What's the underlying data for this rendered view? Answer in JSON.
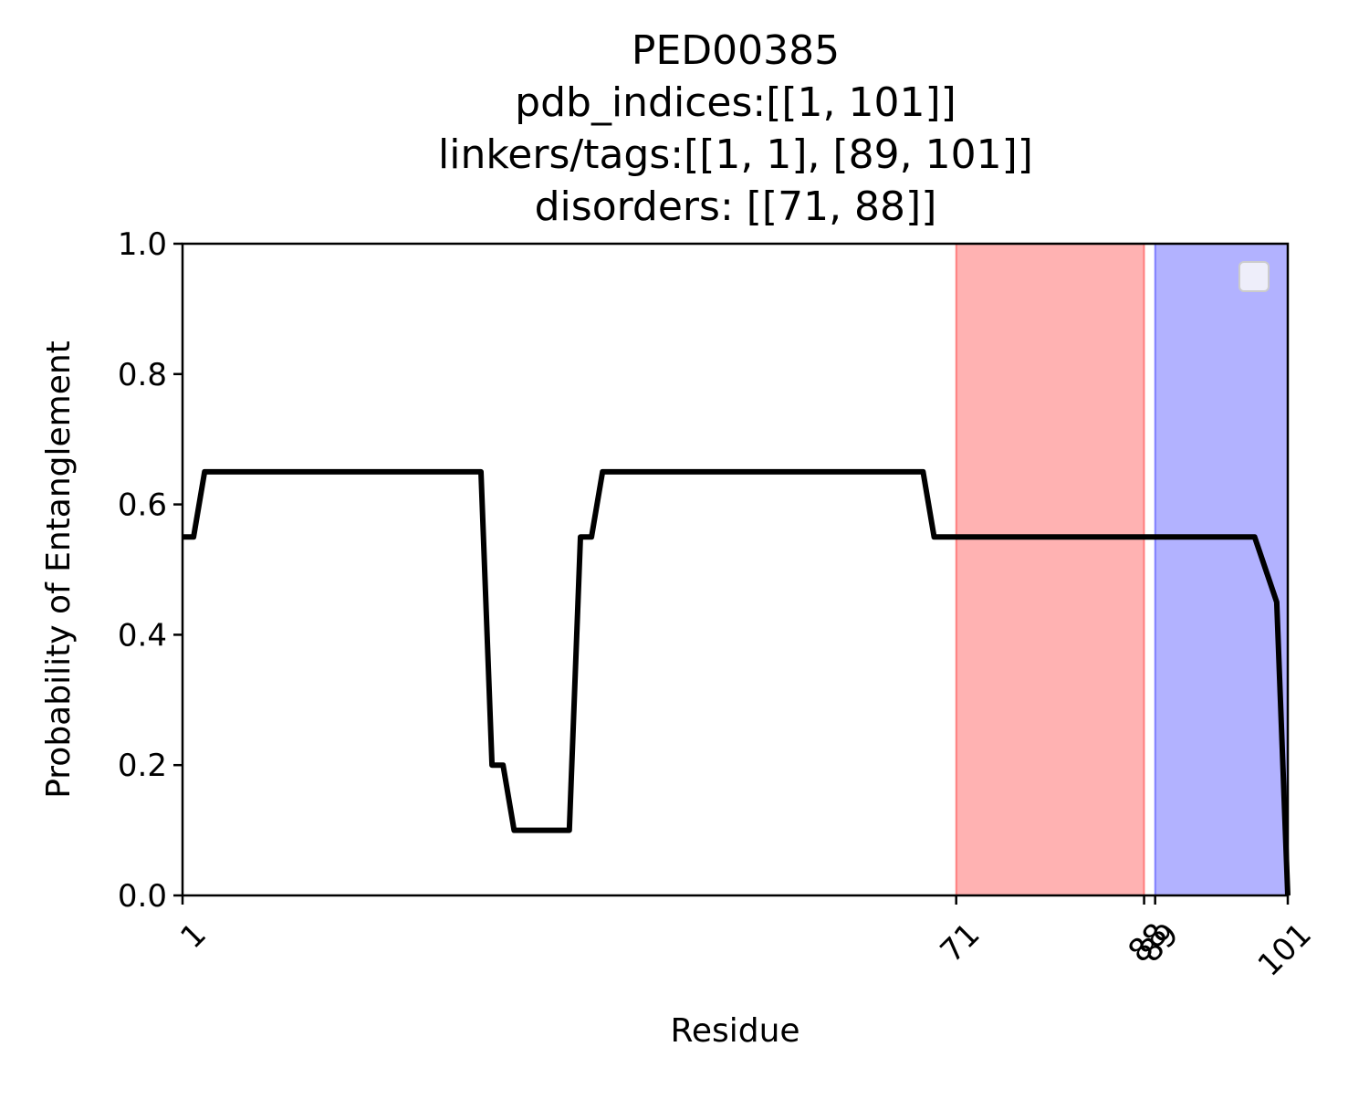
{
  "chart_data": {
    "type": "line",
    "title_lines": [
      "PED00385",
      "pdb_indices:[[1, 101]]",
      "linkers/tags:[[1, 1], [89, 101]]",
      "disorders: [[71, 88]]"
    ],
    "xlabel": "Residue",
    "ylabel": "Probability of Entanglement",
    "xlim": [
      1,
      101
    ],
    "ylim": [
      0,
      1
    ],
    "x_ticks": [
      1,
      71,
      88,
      89,
      101
    ],
    "y_ticks": [
      0.0,
      0.2,
      0.4,
      0.6,
      0.8,
      1.0
    ],
    "y_tick_labels": [
      "0.0",
      "0.2",
      "0.4",
      "0.6",
      "0.8",
      "1.0"
    ],
    "grid": false,
    "legend": {
      "location": "top-right",
      "entries": []
    },
    "shaded_regions": [
      {
        "kind": "disorder",
        "x_start": 71,
        "x_end": 88,
        "color": "#ff0000",
        "alpha": 0.3
      },
      {
        "kind": "linker/tag",
        "x_start": 89,
        "x_end": 101,
        "color": "#0000ff",
        "alpha": 0.3
      }
    ],
    "series": [
      {
        "color": "#000000",
        "x": [
          1,
          2,
          3,
          28,
          29,
          30,
          31,
          32,
          36,
          37,
          38,
          39,
          68,
          69,
          98,
          100,
          101
        ],
        "y": [
          0.55,
          0.55,
          0.65,
          0.65,
          0.2,
          0.2,
          0.1,
          0.1,
          0.1,
          0.55,
          0.55,
          0.65,
          0.65,
          0.55,
          0.55,
          0.45,
          0.0
        ]
      }
    ]
  }
}
